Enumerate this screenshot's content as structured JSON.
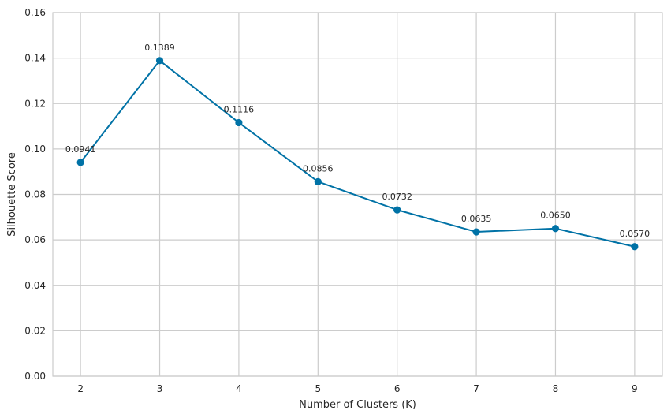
{
  "chart_data": {
    "type": "line",
    "title": "",
    "xlabel": "Number of Clusters (K)",
    "ylabel": "Silhouette Score",
    "x": [
      2,
      3,
      4,
      5,
      6,
      7,
      8,
      9
    ],
    "x_tick_labels": [
      "2",
      "3",
      "4",
      "5",
      "6",
      "7",
      "8",
      "9"
    ],
    "y_ticks": [
      0.0,
      0.02,
      0.04,
      0.06,
      0.08,
      0.1,
      0.12,
      0.14,
      0.16
    ],
    "y_tick_labels": [
      "0.00",
      "0.02",
      "0.04",
      "0.06",
      "0.08",
      "0.10",
      "0.12",
      "0.14",
      "0.16"
    ],
    "xlim": [
      1.65,
      9.35
    ],
    "ylim": [
      0,
      0.16
    ],
    "grid": true,
    "legend": "none",
    "series": [
      {
        "values": [
          0.0941,
          0.1389,
          0.1116,
          0.0856,
          0.0732,
          0.0635,
          0.065,
          0.057
        ],
        "data_labels": [
          "0.0941",
          "0.1389",
          "0.1116",
          "0.0856",
          "0.0732",
          "0.0635",
          "0.0650",
          "0.0570"
        ],
        "color": "#0072a6",
        "marker": "circle"
      }
    ]
  }
}
